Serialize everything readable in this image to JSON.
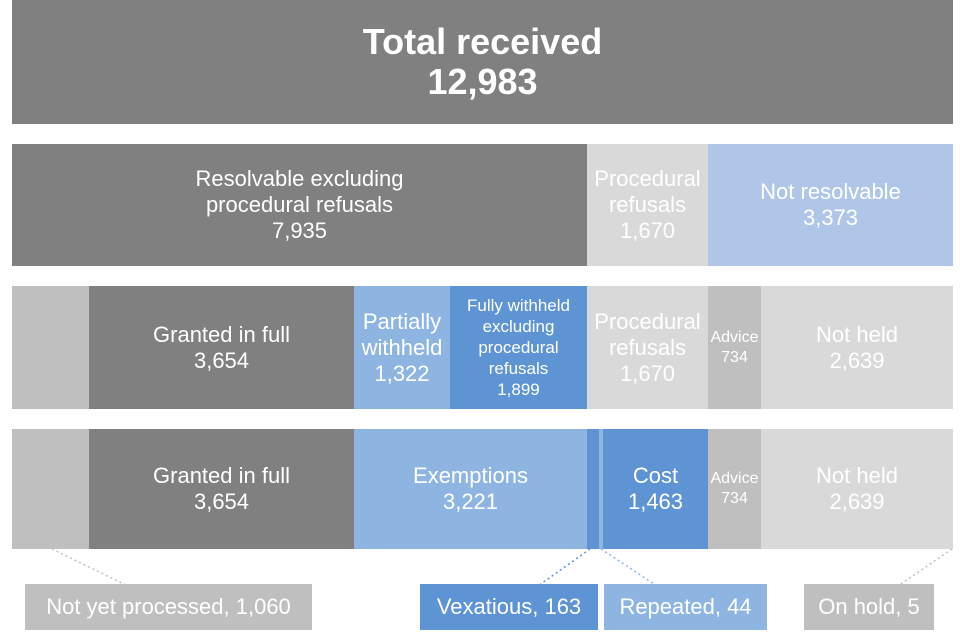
{
  "total": {
    "title": "Total received",
    "value": "12,983"
  },
  "row1": {
    "resolvable": {
      "line1": "Resolvable excluding",
      "line2": "procedural refusals",
      "value": "7,935"
    },
    "procedural": {
      "line1": "Procedural",
      "line2": "refusals",
      "value": "1,670"
    },
    "not_resolvable": {
      "label": "Not resolvable",
      "value": "3,373"
    }
  },
  "row2": {
    "granted": {
      "label": "Granted in full",
      "value": "3,654"
    },
    "partially": {
      "line1": "Partially",
      "line2": "withheld",
      "value": "1,322"
    },
    "fully": {
      "line1": "Fully withheld",
      "line2": "excluding",
      "line3": "procedural",
      "line4": "refusals",
      "value": "1,899"
    },
    "procedural": {
      "line1": "Procedural",
      "line2": "refusals",
      "value": "1,670"
    },
    "advice": {
      "label": "Advice",
      "value": "734"
    },
    "not_held": {
      "label": "Not held",
      "value": "2,639"
    }
  },
  "row3": {
    "granted": {
      "label": "Granted in full",
      "value": "3,654"
    },
    "exemptions": {
      "label": "Exemptions",
      "value": "3,221"
    },
    "cost": {
      "label": "Cost",
      "value": "1,463"
    },
    "advice": {
      "label": "Advice",
      "value": "734"
    },
    "not_held": {
      "label": "Not held",
      "value": "2,639"
    }
  },
  "callouts": {
    "not_yet_processed": "Not yet processed, 1,060",
    "vexatious": "Vexatious, 163",
    "repeated": "Repeated, 44",
    "on_hold": "On hold, 5"
  },
  "colors": {
    "dark_gray": "#808080",
    "light_gray": "#d9d9d9",
    "mid_gray": "#bfbfbf",
    "light_blue": "#afc6e8",
    "mid_blue": "#8eb4e2",
    "dark_blue": "#5e93d4"
  }
}
